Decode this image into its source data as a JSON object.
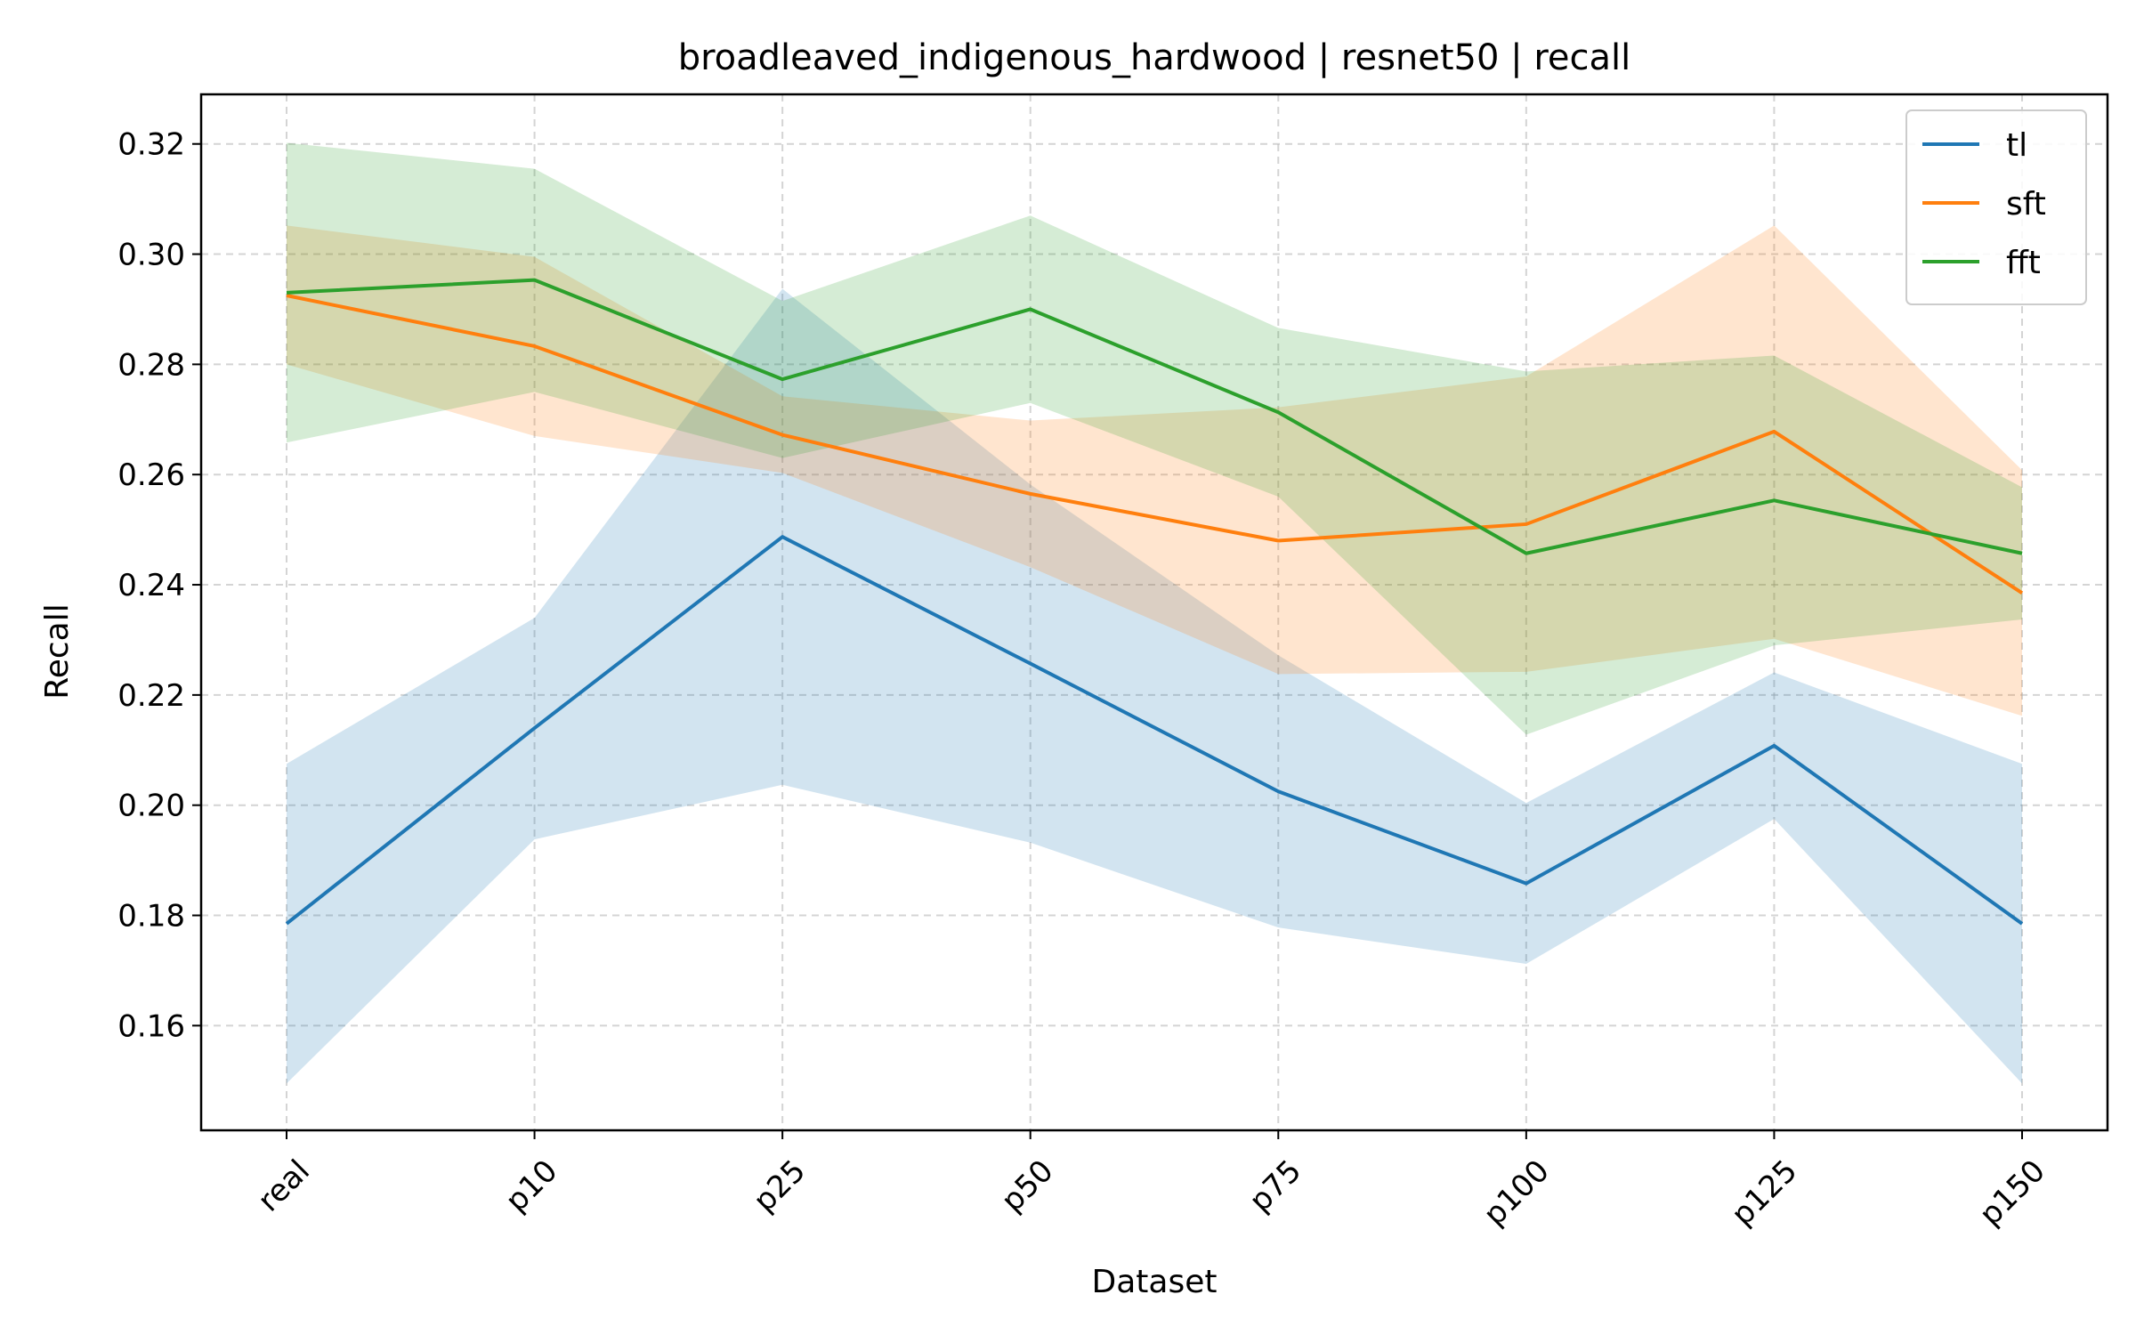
{
  "chart_data": {
    "type": "line",
    "title": "broadleaved_indigenous_hardwood | resnet50 | recall",
    "xlabel": "Dataset",
    "ylabel": "Recall",
    "categories": [
      "real",
      "p10",
      "p25",
      "p50",
      "p75",
      "p100",
      "p125",
      "p150"
    ],
    "ylim": [
      0.141,
      0.329
    ],
    "yticks": [
      0.16,
      0.18,
      0.2,
      0.22,
      0.24,
      0.26,
      0.28,
      0.3,
      0.32
    ],
    "ytick_labels": [
      "0.16",
      "0.18",
      "0.20",
      "0.22",
      "0.24",
      "0.26",
      "0.28",
      "0.30",
      "0.32"
    ],
    "grid": true,
    "legend_position": "top-right",
    "series": [
      {
        "name": "tl",
        "color": "#1f77b4",
        "values": [
          0.1785,
          0.214,
          0.2487,
          0.2257,
          0.2025,
          0.1858,
          0.2108,
          0.1785
        ],
        "lower": [
          0.1495,
          0.1938,
          0.2037,
          0.1932,
          0.1778,
          0.1712,
          0.1975,
          0.1495
        ],
        "upper": [
          0.2075,
          0.234,
          0.2937,
          0.2582,
          0.2272,
          0.2004,
          0.2241,
          0.2075
        ]
      },
      {
        "name": "sft",
        "color": "#ff7f0e",
        "values": [
          0.2925,
          0.2833,
          0.2672,
          0.2565,
          0.248,
          0.251,
          0.2678,
          0.2385
        ],
        "lower": [
          0.28,
          0.267,
          0.2603,
          0.2432,
          0.2238,
          0.2242,
          0.2302,
          0.2162
        ],
        "upper": [
          0.3052,
          0.2995,
          0.2742,
          0.2698,
          0.2722,
          0.2778,
          0.3052,
          0.2608
        ]
      },
      {
        "name": "fft",
        "color": "#2ca02c",
        "values": [
          0.293,
          0.2953,
          0.2773,
          0.29,
          0.2713,
          0.2457,
          0.2553,
          0.2457
        ],
        "lower": [
          0.2658,
          0.275,
          0.263,
          0.273,
          0.256,
          0.2128,
          0.229,
          0.2337
        ],
        "upper": [
          0.3202,
          0.3155,
          0.2915,
          0.307,
          0.2866,
          0.2787,
          0.2816,
          0.2577
        ]
      }
    ]
  }
}
